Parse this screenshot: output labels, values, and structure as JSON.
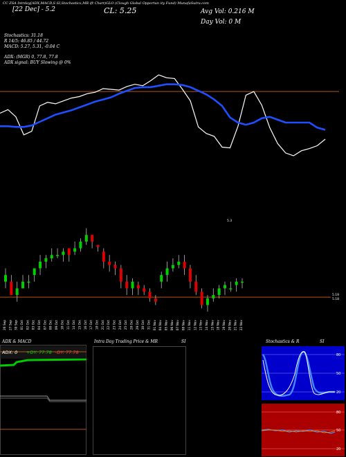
{
  "colors": {
    "background": "#000000",
    "price_line": "#ffffff",
    "ema_line": "#1f4fff",
    "ref_line": "#b8531c",
    "candle_up": "#00d000",
    "candle_down": "#e00000",
    "adx_green": "#00cc00",
    "adx_orange": "#ff7a00",
    "stoch_blue_bg": "#0000cc",
    "si_red_bg": "#aa0000"
  },
  "header": {
    "top_line": "CC ZSA Intrday[ADX,MACD,S     SI,Stochastics,MR          ift Chart)GLO          (Clough Global Opportun         ity Fund) MunafaSutra.com",
    "date_label": "[22 Dec] - 5.2",
    "close_label": "CL: 5.25",
    "avg_vol": "Avg Vol: 0.216  M",
    "day_vol": "Day Vol: 0   M"
  },
  "indicators": {
    "stochastics": "Stochastics: 31.18",
    "stoch_r": "R                   14/5: 46.85 / 44.72",
    "macd": "MACD: 5.27, 5.31, -0.04  C",
    "adx": "ADX:                        (MGR) 0, 77.8, 77.8",
    "adx_signal": "ADX  signal:                              BUY Slowing @ 0%"
  },
  "chart_data": [
    {
      "type": "line",
      "title": "",
      "series": [
        {
          "name": "",
          "values": [
            5.27,
            5.275,
            5.265,
            5.24,
            5.245,
            5.28,
            5.285,
            5.283,
            5.287,
            5.291,
            5.293,
            5.297,
            5.299,
            5.304,
            5.303,
            5.302,
            5.307,
            5.31,
            5.308,
            5.315,
            5.323,
            5.319,
            5.318,
            5.303,
            5.287,
            5.251,
            5.242,
            5.238,
            5.223,
            5.222,
            5.252,
            5.295,
            5.3,
            5.281,
            5.25,
            5.228,
            5.215,
            5.211,
            5.218,
            5.221,
            5.225,
            5.234
          ]
        },
        {
          "name": "",
          "values": [
            5.252,
            5.252,
            5.251,
            5.251,
            5.253,
            5.258,
            5.263,
            5.268,
            5.271,
            5.274,
            5.278,
            5.282,
            5.286,
            5.289,
            5.292,
            5.297,
            5.301,
            5.305,
            5.306,
            5.306,
            5.308,
            5.31,
            5.31,
            5.309,
            5.306,
            5.301,
            5.296,
            5.289,
            5.28,
            5.264,
            5.257,
            5.254,
            5.257,
            5.263,
            5.265,
            5.261,
            5.257,
            5.257,
            5.257,
            5.257,
            5.25,
            5.247
          ]
        }
      ],
      "reference_line": 5.3,
      "ylim": [
        5.12,
        5.35
      ]
    },
    {
      "type": "bar",
      "title": "",
      "categories": [
        "26 Sep",
        "27 Sep",
        "30 Sep",
        "01 Oct",
        "02 Oct",
        "03 Oct",
        "04 Oct",
        "07 Oct",
        "08 Oct",
        "09 Oct",
        "10 Oct",
        "11 Oct",
        "14 Oct",
        "15 Oct",
        "16 Oct",
        "17 Oct",
        "18 Oct",
        "21 Oct",
        "22 Oct",
        "23 Oct",
        "24 Oct",
        "25 Oct",
        "28 Oct",
        "29 Oct",
        "30 Oct",
        "31 Oct",
        "01 Nov",
        "04 Nov",
        "05 Nov",
        "06 Nov",
        "07 Nov",
        "08 Nov",
        "11 Nov",
        "12 Nov",
        "13 Nov",
        "14 Nov",
        "15 Nov",
        "18 Nov",
        "19 Nov",
        "20 Nov",
        "21 Nov",
        "22 Nov"
      ],
      "candles": [
        {
          "o": 5.21,
          "h": 5.23,
          "l": 5.2,
          "c": 5.22
        },
        {
          "o": 5.21,
          "h": 5.22,
          "l": 5.19,
          "c": 5.19
        },
        {
          "o": 5.19,
          "h": 5.21,
          "l": 5.18,
          "c": 5.2
        },
        {
          "o": 5.2,
          "h": 5.22,
          "l": 5.2,
          "c": 5.21
        },
        {
          "o": 5.21,
          "h": 5.22,
          "l": 5.2,
          "c": 5.21
        },
        {
          "o": 5.22,
          "h": 5.23,
          "l": 5.21,
          "c": 5.23
        },
        {
          "o": 5.23,
          "h": 5.25,
          "l": 5.22,
          "c": 5.24
        },
        {
          "o": 5.24,
          "h": 5.25,
          "l": 5.23,
          "c": 5.245
        },
        {
          "o": 5.245,
          "h": 5.26,
          "l": 5.24,
          "c": 5.25
        },
        {
          "o": 5.25,
          "h": 5.26,
          "l": 5.245,
          "c": 5.25
        },
        {
          "o": 5.25,
          "h": 5.26,
          "l": 5.24,
          "c": 5.255
        },
        {
          "o": 5.26,
          "h": 5.26,
          "l": 5.24,
          "c": 5.25
        },
        {
          "o": 5.255,
          "h": 5.27,
          "l": 5.25,
          "c": 5.26
        },
        {
          "o": 5.26,
          "h": 5.275,
          "l": 5.255,
          "c": 5.27
        },
        {
          "o": 5.27,
          "h": 5.29,
          "l": 5.265,
          "c": 5.28
        },
        {
          "o": 5.28,
          "h": 5.28,
          "l": 5.26,
          "c": 5.27
        },
        {
          "o": 5.265,
          "h": 5.265,
          "l": 5.255,
          "c": 5.262
        },
        {
          "o": 5.255,
          "h": 5.26,
          "l": 5.23,
          "c": 5.24
        },
        {
          "o": 5.24,
          "h": 5.25,
          "l": 5.225,
          "c": 5.235
        },
        {
          "o": 5.235,
          "h": 5.24,
          "l": 5.22,
          "c": 5.23
        },
        {
          "o": 5.23,
          "h": 5.235,
          "l": 5.2,
          "c": 5.21
        },
        {
          "o": 5.21,
          "h": 5.22,
          "l": 5.19,
          "c": 5.2
        },
        {
          "o": 5.2,
          "h": 5.215,
          "l": 5.19,
          "c": 5.21
        },
        {
          "o": 5.205,
          "h": 5.21,
          "l": 5.19,
          "c": 5.2
        },
        {
          "o": 5.2,
          "h": 5.205,
          "l": 5.19,
          "c": 5.195
        },
        {
          "o": 5.195,
          "h": 5.2,
          "l": 5.18,
          "c": 5.185
        },
        {
          "o": 5.185,
          "h": 5.19,
          "l": 5.175,
          "c": 5.18
        },
        {
          "o": 5.21,
          "h": 5.225,
          "l": 5.2,
          "c": 5.22
        },
        {
          "o": 5.22,
          "h": 5.24,
          "l": 5.21,
          "c": 5.23
        },
        {
          "o": 5.23,
          "h": 5.245,
          "l": 5.225,
          "c": 5.235
        },
        {
          "o": 5.235,
          "h": 5.25,
          "l": 5.23,
          "c": 5.24
        },
        {
          "o": 5.24,
          "h": 5.25,
          "l": 5.22,
          "c": 5.23
        },
        {
          "o": 5.23,
          "h": 5.235,
          "l": 5.2,
          "c": 5.21
        },
        {
          "o": 5.21,
          "h": 5.22,
          "l": 5.19,
          "c": 5.195
        },
        {
          "o": 5.195,
          "h": 5.2,
          "l": 5.17,
          "c": 5.175
        },
        {
          "o": 5.175,
          "h": 5.19,
          "l": 5.165,
          "c": 5.185
        },
        {
          "o": 5.185,
          "h": 5.2,
          "l": 5.18,
          "c": 5.19
        },
        {
          "o": 5.19,
          "h": 5.205,
          "l": 5.185,
          "c": 5.2
        },
        {
          "o": 5.2,
          "h": 5.21,
          "l": 5.19,
          "c": 5.205
        },
        {
          "o": 5.2,
          "h": 5.21,
          "l": 5.195,
          "c": 5.2
        },
        {
          "o": 5.205,
          "h": 5.215,
          "l": 5.195,
          "c": 5.21
        },
        {
          "o": 5.21,
          "h": 5.215,
          "l": 5.2,
          "c": 5.21
        }
      ],
      "right_labels": [
        "5.3",
        "5.19",
        "5.18"
      ],
      "ylim": [
        5.16,
        5.3
      ]
    }
  ],
  "dates": [
    "26 Sep",
    "27 Sep",
    "30 Sep",
    "01 Oct",
    "02 Oct",
    "03 Oct",
    "04 Oct",
    "07 Oct",
    "08 Oct",
    "09 Oct",
    "10 Oct",
    "11 Oct",
    "14 Oct",
    "15 Oct",
    "16 Oct",
    "17 Oct",
    "18 Oct",
    "21 Oct",
    "22 Oct",
    "23 Oct",
    "24 Oct",
    "25 Oct",
    "28 Oct",
    "29 Oct",
    "30 Oct",
    "31 Oct",
    "01 Nov",
    "04 Nov",
    "05 Nov",
    "06 Nov",
    "07 Nov",
    "08 Nov",
    "11 Nov",
    "12 Nov",
    "13 Nov",
    "14 Nov",
    "15 Nov",
    "18 Nov",
    "19 Nov",
    "20 Nov",
    "21 Nov",
    "22 Nov"
  ],
  "panels": {
    "adx": {
      "title": "ADX  & MACD",
      "adx_label": "ADX: 0",
      "pos_di": "+DY: 77.78",
      "neg_di": "-DY: 77.78"
    },
    "intraday": {
      "title": "Intra  Day Trading Price  & MR",
      "si": "SI"
    },
    "stoch": {
      "title": "Stochastics & R",
      "si": "SI",
      "ticks": [
        "80",
        "50",
        "20"
      ],
      "ticks_lower": [
        "80",
        "50",
        "20"
      ]
    }
  }
}
